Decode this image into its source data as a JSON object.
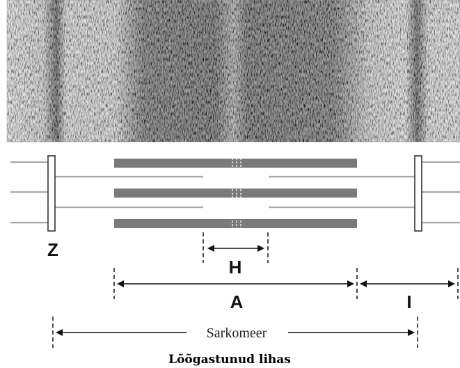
{
  "micrograph": {
    "description_icon": "electron-micrograph-texture"
  },
  "labels": {
    "z_line": "Z",
    "h_zone": "H",
    "a_band": "A",
    "i_band": "I",
    "sarcomere": "Sarkomeer"
  },
  "caption": "Lõõgastunud lihas",
  "colors": {
    "thick_filament": "#7a7a7a",
    "thin_filament": "#a8a8a8",
    "z_disc_stroke": "#333333",
    "dark_band": "#1e1e1e",
    "light_band": "#bdbdbd"
  }
}
